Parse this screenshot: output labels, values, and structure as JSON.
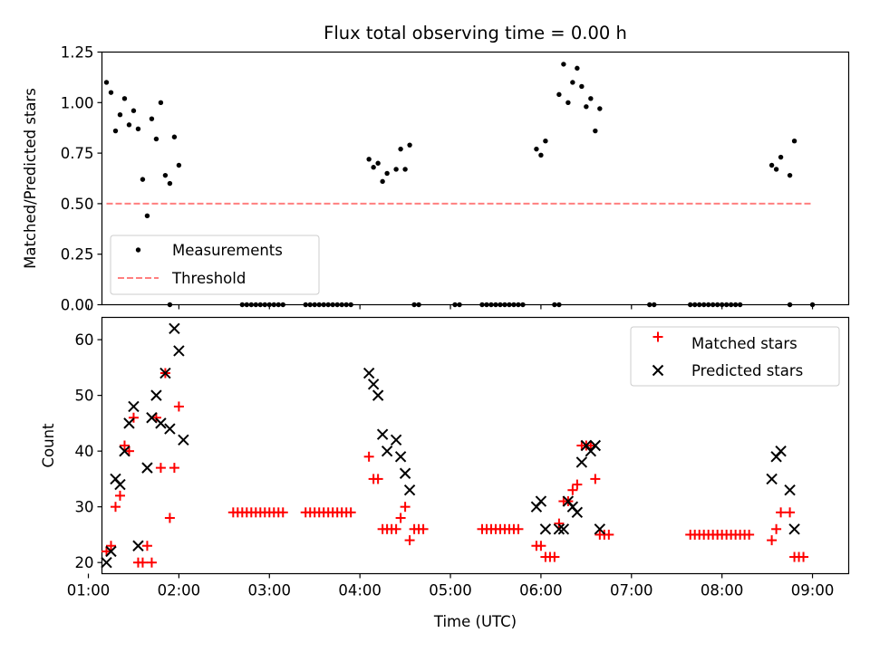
{
  "figure": {
    "title": "Flux total observing time = 0.00 h"
  },
  "chart_data": [
    {
      "type": "scatter",
      "title": "Flux total observing time = 0.00 h",
      "xlabel": "",
      "ylabel": "Matched/Predicted stars",
      "xlim": [
        "01:09",
        "09:24"
      ],
      "ylim": [
        0,
        1.25
      ],
      "x_ticks": [
        "01:00",
        "02:00",
        "03:00",
        "04:00",
        "05:00",
        "06:00",
        "07:00",
        "08:00",
        "09:00"
      ],
      "y_ticks": [
        "0.00",
        "0.25",
        "0.50",
        "0.75",
        "1.00",
        "1.25"
      ],
      "legend": {
        "position": "lower-left",
        "entries": [
          "Measurements",
          "Threshold"
        ]
      },
      "colors": {
        "measurements": "#000000",
        "threshold": "#ff7f7f"
      },
      "series": [
        {
          "name": "Measurements",
          "marker": "dot",
          "points": [
            [
              "01:12",
              1.1
            ],
            [
              "01:15",
              1.05
            ],
            [
              "01:18",
              0.86
            ],
            [
              "01:21",
              0.94
            ],
            [
              "01:24",
              1.02
            ],
            [
              "01:27",
              0.89
            ],
            [
              "01:30",
              0.96
            ],
            [
              "01:33",
              0.87
            ],
            [
              "01:36",
              0.62
            ],
            [
              "01:39",
              0.44
            ],
            [
              "01:42",
              0.92
            ],
            [
              "01:45",
              0.82
            ],
            [
              "01:48",
              1.0
            ],
            [
              "01:51",
              0.64
            ],
            [
              "01:54",
              0.6
            ],
            [
              "01:57",
              0.83
            ],
            [
              "02:00",
              0.69
            ],
            [
              "04:06",
              0.72
            ],
            [
              "04:09",
              0.68
            ],
            [
              "04:12",
              0.7
            ],
            [
              "04:15",
              0.61
            ],
            [
              "04:18",
              0.65
            ],
            [
              "04:24",
              0.67
            ],
            [
              "04:27",
              0.77
            ],
            [
              "04:30",
              0.67
            ],
            [
              "04:33",
              0.79
            ],
            [
              "05:57",
              0.77
            ],
            [
              "06:00",
              0.74
            ],
            [
              "06:03",
              0.81
            ],
            [
              "06:12",
              1.04
            ],
            [
              "06:15",
              1.19
            ],
            [
              "06:18",
              1.0
            ],
            [
              "06:21",
              1.1
            ],
            [
              "06:24",
              1.17
            ],
            [
              "06:27",
              1.08
            ],
            [
              "06:30",
              0.98
            ],
            [
              "06:33",
              1.02
            ],
            [
              "06:36",
              0.86
            ],
            [
              "06:39",
              0.97
            ],
            [
              "08:33",
              0.69
            ],
            [
              "08:36",
              0.67
            ],
            [
              "08:39",
              0.73
            ],
            [
              "08:45",
              0.64
            ],
            [
              "08:48",
              0.81
            ]
          ],
          "zeros": [
            "01:54",
            "02:42",
            "02:45",
            "02:48",
            "02:51",
            "02:54",
            "02:57",
            "03:00",
            "03:03",
            "03:06",
            "03:09",
            "03:24",
            "03:27",
            "03:30",
            "03:33",
            "03:36",
            "03:39",
            "03:42",
            "03:45",
            "03:48",
            "03:51",
            "03:54",
            "04:36",
            "04:39",
            "05:03",
            "05:06",
            "05:21",
            "05:24",
            "05:27",
            "05:30",
            "05:33",
            "05:36",
            "05:39",
            "05:42",
            "05:45",
            "05:48",
            "06:09",
            "06:12",
            "07:12",
            "07:15",
            "07:39",
            "07:42",
            "07:45",
            "07:48",
            "07:51",
            "07:54",
            "07:57",
            "08:00",
            "08:03",
            "08:06",
            "08:09",
            "08:12",
            "08:45",
            "09:00"
          ]
        },
        {
          "name": "Threshold",
          "style": "dashed",
          "x": [
            "01:12",
            "09:00"
          ],
          "y": 0.5
        }
      ]
    },
    {
      "type": "scatter",
      "title": "",
      "xlabel": "Time (UTC)",
      "ylabel": "Count",
      "xlim": [
        "01:09",
        "09:24"
      ],
      "ylim": [
        18,
        64
      ],
      "x_ticks": [
        "01:00",
        "02:00",
        "03:00",
        "04:00",
        "05:00",
        "06:00",
        "07:00",
        "08:00",
        "09:00"
      ],
      "y_ticks": [
        "20",
        "30",
        "40",
        "50",
        "60"
      ],
      "legend": {
        "position": "upper-right",
        "entries": [
          "Matched stars",
          "Predicted stars"
        ]
      },
      "colors": {
        "matched": "#ff0000",
        "predicted": "#000000"
      },
      "series": [
        {
          "name": "Matched stars",
          "marker": "plus",
          "points": [
            [
              "01:12",
              22
            ],
            [
              "01:15",
              23
            ],
            [
              "01:18",
              30
            ],
            [
              "01:21",
              32
            ],
            [
              "01:24",
              41
            ],
            [
              "01:27",
              40
            ],
            [
              "01:30",
              46
            ],
            [
              "01:33",
              20
            ],
            [
              "01:36",
              20
            ],
            [
              "01:39",
              23
            ],
            [
              "01:42",
              20
            ],
            [
              "01:45",
              46
            ],
            [
              "01:48",
              37
            ],
            [
              "01:51",
              54
            ],
            [
              "01:54",
              28
            ],
            [
              "01:57",
              37
            ],
            [
              "02:00",
              48
            ],
            [
              "02:36",
              29
            ],
            [
              "02:39",
              29
            ],
            [
              "02:42",
              29
            ],
            [
              "02:45",
              29
            ],
            [
              "02:48",
              29
            ],
            [
              "02:51",
              29
            ],
            [
              "02:54",
              29
            ],
            [
              "02:57",
              29
            ],
            [
              "03:00",
              29
            ],
            [
              "03:03",
              29
            ],
            [
              "03:06",
              29
            ],
            [
              "03:09",
              29
            ],
            [
              "03:24",
              29
            ],
            [
              "03:27",
              29
            ],
            [
              "03:30",
              29
            ],
            [
              "03:33",
              29
            ],
            [
              "03:36",
              29
            ],
            [
              "03:39",
              29
            ],
            [
              "03:42",
              29
            ],
            [
              "03:45",
              29
            ],
            [
              "03:48",
              29
            ],
            [
              "03:51",
              29
            ],
            [
              "03:54",
              29
            ],
            [
              "04:06",
              39
            ],
            [
              "04:09",
              35
            ],
            [
              "04:12",
              35
            ],
            [
              "04:15",
              26
            ],
            [
              "04:18",
              26
            ],
            [
              "04:21",
              26
            ],
            [
              "04:24",
              26
            ],
            [
              "04:27",
              28
            ],
            [
              "04:30",
              30
            ],
            [
              "04:33",
              24
            ],
            [
              "04:36",
              26
            ],
            [
              "04:39",
              26
            ],
            [
              "04:42",
              26
            ],
            [
              "05:21",
              26
            ],
            [
              "05:24",
              26
            ],
            [
              "05:27",
              26
            ],
            [
              "05:30",
              26
            ],
            [
              "05:33",
              26
            ],
            [
              "05:36",
              26
            ],
            [
              "05:39",
              26
            ],
            [
              "05:42",
              26
            ],
            [
              "05:45",
              26
            ],
            [
              "05:57",
              23
            ],
            [
              "06:00",
              23
            ],
            [
              "06:03",
              21
            ],
            [
              "06:06",
              21
            ],
            [
              "06:09",
              21
            ],
            [
              "06:12",
              27
            ],
            [
              "06:15",
              31
            ],
            [
              "06:18",
              31
            ],
            [
              "06:21",
              33
            ],
            [
              "06:24",
              34
            ],
            [
              "06:27",
              41
            ],
            [
              "06:30",
              41
            ],
            [
              "06:33",
              41
            ],
            [
              "06:36",
              35
            ],
            [
              "06:39",
              25
            ],
            [
              "06:42",
              25
            ],
            [
              "06:45",
              25
            ],
            [
              "07:39",
              25
            ],
            [
              "07:42",
              25
            ],
            [
              "07:45",
              25
            ],
            [
              "07:48",
              25
            ],
            [
              "07:51",
              25
            ],
            [
              "07:54",
              25
            ],
            [
              "07:57",
              25
            ],
            [
              "08:00",
              25
            ],
            [
              "08:03",
              25
            ],
            [
              "08:06",
              25
            ],
            [
              "08:09",
              25
            ],
            [
              "08:12",
              25
            ],
            [
              "08:15",
              25
            ],
            [
              "08:18",
              25
            ],
            [
              "08:33",
              24
            ],
            [
              "08:36",
              26
            ],
            [
              "08:39",
              29
            ],
            [
              "08:45",
              29
            ],
            [
              "08:48",
              21
            ],
            [
              "08:51",
              21
            ],
            [
              "08:54",
              21
            ]
          ]
        },
        {
          "name": "Predicted stars",
          "marker": "x",
          "points": [
            [
              "01:12",
              20
            ],
            [
              "01:15",
              22
            ],
            [
              "01:18",
              35
            ],
            [
              "01:21",
              34
            ],
            [
              "01:24",
              40
            ],
            [
              "01:27",
              45
            ],
            [
              "01:30",
              48
            ],
            [
              "01:33",
              23
            ],
            [
              "01:39",
              37
            ],
            [
              "01:42",
              46
            ],
            [
              "01:45",
              50
            ],
            [
              "01:48",
              45
            ],
            [
              "01:51",
              54
            ],
            [
              "01:54",
              44
            ],
            [
              "01:57",
              62
            ],
            [
              "02:00",
              58
            ],
            [
              "02:03",
              42
            ],
            [
              "04:06",
              54
            ],
            [
              "04:09",
              52
            ],
            [
              "04:12",
              50
            ],
            [
              "04:15",
              43
            ],
            [
              "04:18",
              40
            ],
            [
              "04:24",
              42
            ],
            [
              "04:27",
              39
            ],
            [
              "04:30",
              36
            ],
            [
              "04:33",
              33
            ],
            [
              "05:57",
              30
            ],
            [
              "06:00",
              31
            ],
            [
              "06:03",
              26
            ],
            [
              "06:12",
              26
            ],
            [
              "06:15",
              26
            ],
            [
              "06:18",
              31
            ],
            [
              "06:21",
              30
            ],
            [
              "06:24",
              29
            ],
            [
              "06:27",
              38
            ],
            [
              "06:30",
              41
            ],
            [
              "06:33",
              40
            ],
            [
              "06:36",
              41
            ],
            [
              "06:39",
              26
            ],
            [
              "08:33",
              35
            ],
            [
              "08:36",
              39
            ],
            [
              "08:39",
              40
            ],
            [
              "08:45",
              33
            ],
            [
              "08:48",
              26
            ]
          ]
        }
      ]
    }
  ]
}
